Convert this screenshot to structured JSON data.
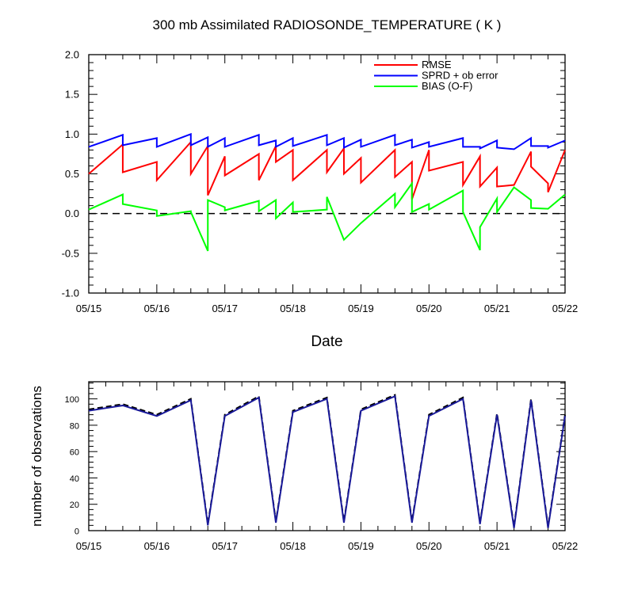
{
  "chart_data": [
    {
      "type": "line",
      "title": "300 mb Assimilated RADIOSONDE_TEMPERATURE ( K )",
      "xlabel": "Date",
      "ylabel": "",
      "xlim": [
        0,
        7
      ],
      "ylim": [
        -1.0,
        2.0
      ],
      "x_tick_labels": [
        "05/15",
        "05/16",
        "05/17",
        "05/18",
        "05/19",
        "05/20",
        "05/21",
        "05/22"
      ],
      "y_tick_labels": [
        "2.0",
        "1.5",
        "1.0",
        "0.5",
        "0.0",
        "-0.5",
        "-1.0"
      ],
      "y_tick_values": [
        2.0,
        1.5,
        1.0,
        0.5,
        0.0,
        -0.5,
        -1.0
      ],
      "reference_line": {
        "y": 0.0,
        "style": "dashed",
        "color": "#000000"
      },
      "legend": {
        "placement": "top-right",
        "entries": [
          {
            "label": "RMSE",
            "color": "#ff0000"
          },
          {
            "label": "SPRD + ob error",
            "color": "#0000ff"
          },
          {
            "label": "BIAS (O-F)",
            "color": "#00ff00"
          }
        ]
      },
      "series": [
        {
          "name": "RMSE",
          "color": "#ff0000",
          "points": [
            [
              0,
              0.5
            ],
            [
              0.5,
              0.87
            ],
            [
              0.5,
              0.52
            ],
            [
              1,
              0.65
            ],
            [
              1,
              0.42
            ],
            [
              1.5,
              0.9
            ],
            [
              1.5,
              0.5
            ],
            [
              1.75,
              0.85
            ],
            [
              1.75,
              0.23
            ],
            [
              2,
              0.72
            ],
            [
              2,
              0.48
            ],
            [
              2.5,
              0.75
            ],
            [
              2.5,
              0.42
            ],
            [
              2.75,
              0.85
            ],
            [
              2.75,
              0.65
            ],
            [
              3,
              0.8
            ],
            [
              3,
              0.42
            ],
            [
              3.5,
              0.8
            ],
            [
              3.5,
              0.52
            ],
            [
              3.75,
              0.82
            ],
            [
              3.75,
              0.5
            ],
            [
              4,
              0.7
            ],
            [
              4,
              0.39
            ],
            [
              4.5,
              0.8
            ],
            [
              4.5,
              0.46
            ],
            [
              4.75,
              0.65
            ],
            [
              4.75,
              0.18
            ],
            [
              5,
              0.8
            ],
            [
              5,
              0.54
            ],
            [
              5.5,
              0.65
            ],
            [
              5.5,
              0.36
            ],
            [
              5.75,
              0.72
            ],
            [
              5.75,
              0.34
            ],
            [
              6,
              0.58
            ],
            [
              6,
              0.34
            ],
            [
              6.25,
              0.36
            ],
            [
              6.5,
              0.78
            ],
            [
              6.5,
              0.59
            ],
            [
              6.75,
              0.38
            ],
            [
              6.75,
              0.27
            ],
            [
              7,
              0.8
            ]
          ]
        },
        {
          "name": "SPRD + ob error",
          "color": "#0000ff",
          "points": [
            [
              0,
              0.84
            ],
            [
              0.5,
              0.99
            ],
            [
              0.5,
              0.86
            ],
            [
              1,
              0.95
            ],
            [
              1,
              0.84
            ],
            [
              1.5,
              1.0
            ],
            [
              1.5,
              0.86
            ],
            [
              1.75,
              0.96
            ],
            [
              1.75,
              0.84
            ],
            [
              2,
              0.95
            ],
            [
              2,
              0.84
            ],
            [
              2.5,
              0.99
            ],
            [
              2.5,
              0.86
            ],
            [
              2.75,
              0.92
            ],
            [
              2.75,
              0.84
            ],
            [
              3,
              0.95
            ],
            [
              3,
              0.85
            ],
            [
              3.5,
              0.99
            ],
            [
              3.5,
              0.86
            ],
            [
              3.75,
              0.95
            ],
            [
              3.75,
              0.83
            ],
            [
              4,
              0.93
            ],
            [
              4,
              0.84
            ],
            [
              4.5,
              0.99
            ],
            [
              4.5,
              0.86
            ],
            [
              4.75,
              0.93
            ],
            [
              4.75,
              0.83
            ],
            [
              5,
              0.9
            ],
            [
              5,
              0.84
            ],
            [
              5.5,
              0.95
            ],
            [
              5.5,
              0.84
            ],
            [
              5.75,
              0.84
            ],
            [
              5.75,
              0.82
            ],
            [
              6,
              0.92
            ],
            [
              6,
              0.83
            ],
            [
              6.25,
              0.81
            ],
            [
              6.5,
              0.95
            ],
            [
              6.5,
              0.85
            ],
            [
              6.75,
              0.85
            ],
            [
              6.75,
              0.83
            ],
            [
              7,
              0.92
            ]
          ]
        },
        {
          "name": "BIAS (O-F)",
          "color": "#00ff00",
          "points": [
            [
              0,
              0.05
            ],
            [
              0.5,
              0.24
            ],
            [
              0.5,
              0.12
            ],
            [
              1,
              0.04
            ],
            [
              1,
              -0.03
            ],
            [
              1.5,
              0.03
            ],
            [
              1.5,
              0.02
            ],
            [
              1.75,
              -0.47
            ],
            [
              1.75,
              0.17
            ],
            [
              2,
              0.08
            ],
            [
              2,
              0.04
            ],
            [
              2.5,
              0.16
            ],
            [
              2.5,
              0.03
            ],
            [
              2.75,
              0.17
            ],
            [
              2.75,
              -0.06
            ],
            [
              3,
              0.14
            ],
            [
              3,
              0.02
            ],
            [
              3.5,
              0.05
            ],
            [
              3.5,
              0.21
            ],
            [
              3.75,
              -0.33
            ],
            [
              4,
              -0.12
            ],
            [
              4.5,
              0.25
            ],
            [
              4.5,
              0.08
            ],
            [
              4.75,
              0.38
            ],
            [
              4.75,
              0.02
            ],
            [
              5,
              0.12
            ],
            [
              5,
              0.05
            ],
            [
              5.5,
              0.29
            ],
            [
              5.5,
              0.02
            ],
            [
              5.75,
              -0.46
            ],
            [
              5.75,
              -0.17
            ],
            [
              6,
              0.19
            ],
            [
              6,
              0.02
            ],
            [
              6.25,
              0.33
            ],
            [
              6.5,
              0.17
            ],
            [
              6.5,
              0.07
            ],
            [
              6.75,
              0.06
            ],
            [
              7,
              0.24
            ]
          ]
        }
      ]
    },
    {
      "type": "line",
      "title": "",
      "xlabel": "",
      "ylabel": "number of observations",
      "xlim": [
        0,
        7
      ],
      "ylim": [
        0,
        113
      ],
      "x_tick_labels": [
        "05/15",
        "05/16",
        "05/17",
        "05/18",
        "05/19",
        "05/20",
        "05/21",
        "05/22"
      ],
      "y_tick_labels": [
        "100",
        "80",
        "60",
        "40",
        "20",
        "0"
      ],
      "y_tick_values": [
        100,
        80,
        60,
        40,
        20,
        0
      ],
      "series": [
        {
          "name": "observations (black dashed)",
          "color": "#000000",
          "style": "dashed",
          "points": [
            [
              0,
              92
            ],
            [
              0.5,
              96
            ],
            [
              1,
              88
            ],
            [
              1.5,
              100
            ],
            [
              1.75,
              5
            ],
            [
              2,
              88
            ],
            [
              2.5,
              102
            ],
            [
              2.75,
              7
            ],
            [
              3,
              91
            ],
            [
              3.5,
              101
            ],
            [
              3.75,
              7
            ],
            [
              4,
              92
            ],
            [
              4.5,
              103
            ],
            [
              4.75,
              7
            ],
            [
              5,
              88
            ],
            [
              5.5,
              101
            ],
            [
              5.75,
              6
            ],
            [
              6,
              89
            ],
            [
              6.25,
              3
            ],
            [
              6.5,
              100
            ],
            [
              6.75,
              3
            ],
            [
              7,
              88
            ]
          ]
        },
        {
          "name": "observations (blue solid)",
          "color": "#1a1a9a",
          "style": "solid",
          "points": [
            [
              0,
              91
            ],
            [
              0.5,
              95
            ],
            [
              1,
              87
            ],
            [
              1.5,
              99
            ],
            [
              1.75,
              4
            ],
            [
              2,
              87
            ],
            [
              2.5,
              101
            ],
            [
              2.75,
              6
            ],
            [
              3,
              90
            ],
            [
              3.5,
              100
            ],
            [
              3.75,
              6
            ],
            [
              4,
              91
            ],
            [
              4.5,
              102
            ],
            [
              4.75,
              6
            ],
            [
              5,
              87
            ],
            [
              5.5,
              100
            ],
            [
              5.75,
              5
            ],
            [
              6,
              88
            ],
            [
              6.25,
              2
            ],
            [
              6.5,
              99
            ],
            [
              6.75,
              2
            ],
            [
              7,
              87
            ]
          ]
        }
      ]
    }
  ]
}
